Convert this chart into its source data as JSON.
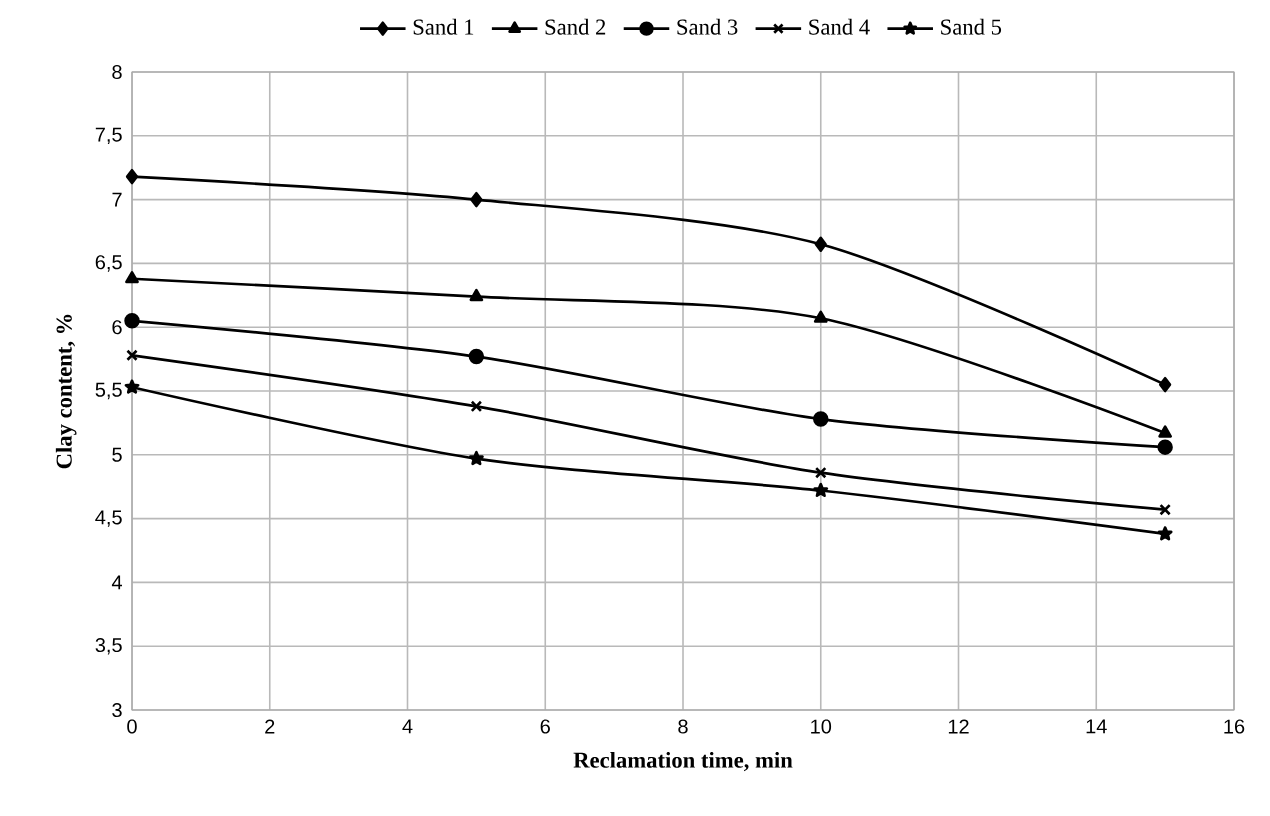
{
  "chart_data": {
    "type": "line",
    "xlabel": "Reclamation time, min",
    "ylabel": "Clay content, %",
    "x": [
      0,
      5,
      10,
      15
    ],
    "series": [
      {
        "name": "Sand 1",
        "color": "#000000",
        "marker": "diamond",
        "values": [
          7.18,
          7.0,
          6.65,
          5.55
        ]
      },
      {
        "name": "Sand 2",
        "color": "#000000",
        "marker": "triangle",
        "values": [
          6.38,
          6.24,
          6.07,
          5.17
        ]
      },
      {
        "name": "Sand 3",
        "color": "#000000",
        "marker": "circle",
        "values": [
          6.05,
          5.77,
          5.28,
          5.06
        ]
      },
      {
        "name": "Sand 4",
        "color": "#000000",
        "marker": "cross",
        "values": [
          5.78,
          5.38,
          4.86,
          4.57
        ]
      },
      {
        "name": "Sand 5",
        "color": "#000000",
        "marker": "star",
        "values": [
          5.53,
          4.97,
          4.72,
          4.38
        ]
      }
    ],
    "xlim": [
      0,
      16
    ],
    "xticks": [
      0,
      2,
      4,
      6,
      8,
      10,
      12,
      14,
      16
    ],
    "ylim": [
      3,
      8
    ],
    "yticks": [
      3,
      {
        "value": 3.5,
        "label": "3,5"
      },
      4,
      {
        "value": 4.5,
        "label": "4,5"
      },
      5,
      {
        "value": 5.5,
        "label": "5,5"
      },
      6,
      {
        "value": 6.5,
        "label": "6,5"
      },
      7,
      {
        "value": 7.5,
        "label": "7,5"
      },
      8
    ],
    "grid": true,
    "legend": "top",
    "line_style": "solid"
  }
}
